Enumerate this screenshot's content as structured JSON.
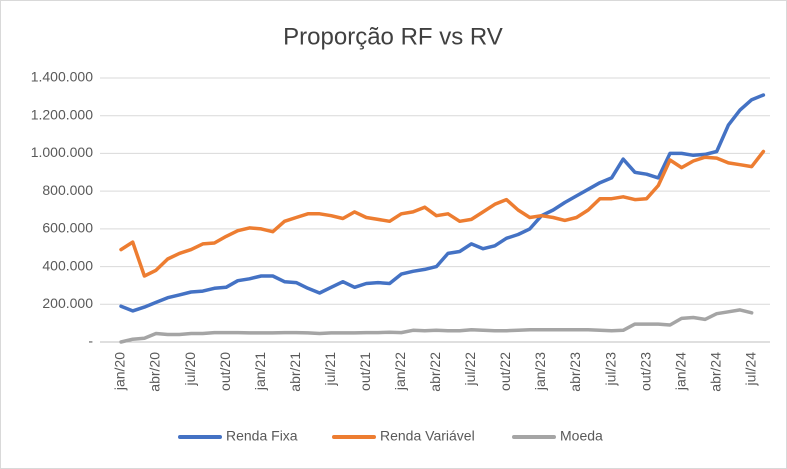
{
  "chart_data": {
    "type": "line",
    "title": "Proporção RF vs RV",
    "categories": [
      "jan/20",
      null,
      null,
      "abr/20",
      null,
      null,
      "jul/20",
      null,
      null,
      "out/20",
      null,
      null,
      "jan/21",
      null,
      null,
      "abr/21",
      null,
      null,
      "jul/21",
      null,
      null,
      "out/21",
      null,
      null,
      "jan/22",
      null,
      null,
      "abr/22",
      null,
      null,
      "jul/22",
      null,
      null,
      "out/22",
      null,
      null,
      "jan/23",
      null,
      null,
      "abr/23",
      null,
      null,
      "jul/23",
      null,
      null,
      "out/23",
      null,
      null,
      "jan/24",
      null,
      null,
      "abr/24",
      null,
      null,
      "jul/24",
      null
    ],
    "series": [
      {
        "name": "Renda Fixa",
        "color": "#4472c4",
        "values": [
          190000,
          165000,
          185000,
          210000,
          235000,
          250000,
          265000,
          270000,
          285000,
          290000,
          325000,
          335000,
          350000,
          350000,
          320000,
          315000,
          285000,
          260000,
          290000,
          320000,
          290000,
          310000,
          315000,
          310000,
          360000,
          375000,
          385000,
          400000,
          470000,
          480000,
          520000,
          495000,
          510000,
          550000,
          570000,
          600000,
          670000,
          700000,
          740000,
          775000,
          810000,
          845000,
          870000,
          970000,
          900000,
          890000,
          870000,
          1000000,
          1000000,
          990000,
          995000,
          1010000,
          1150000,
          1230000,
          1285000,
          1310000
        ]
      },
      {
        "name": "Renda Variável",
        "color": "#ed7d31",
        "values": [
          490000,
          530000,
          350000,
          380000,
          440000,
          470000,
          490000,
          520000,
          525000,
          560000,
          590000,
          605000,
          600000,
          585000,
          640000,
          660000,
          680000,
          680000,
          670000,
          655000,
          690000,
          660000,
          650000,
          640000,
          680000,
          690000,
          715000,
          670000,
          680000,
          640000,
          650000,
          690000,
          730000,
          755000,
          700000,
          660000,
          670000,
          660000,
          645000,
          660000,
          700000,
          760000,
          760000,
          770000,
          755000,
          760000,
          830000,
          965000,
          925000,
          960000,
          980000,
          975000,
          950000,
          940000,
          930000,
          1010000
        ]
      },
      {
        "name": "Moeda",
        "color": "#a5a5a5",
        "values": [
          0,
          15000,
          20000,
          45000,
          40000,
          40000,
          45000,
          45000,
          50000,
          50000,
          50000,
          48000,
          48000,
          48000,
          50000,
          50000,
          48000,
          45000,
          48000,
          48000,
          48000,
          50000,
          50000,
          52000,
          50000,
          62000,
          60000,
          62000,
          60000,
          60000,
          65000,
          62000,
          60000,
          60000,
          62000,
          65000,
          65000,
          65000,
          65000,
          65000,
          65000,
          62000,
          60000,
          62000,
          95000,
          95000,
          95000,
          90000,
          125000,
          130000,
          120000,
          150000,
          160000,
          170000,
          155000,
          null
        ]
      }
    ],
    "ylim": [
      0,
      1400000
    ],
    "yticks": [
      {
        "value": 0,
        "label": "-"
      },
      {
        "value": 200000,
        "label": "200.000"
      },
      {
        "value": 400000,
        "label": "400.000"
      },
      {
        "value": 600000,
        "label": "600.000"
      },
      {
        "value": 800000,
        "label": "800.000"
      },
      {
        "value": 1000000,
        "label": "1.000.000"
      },
      {
        "value": 1200000,
        "label": "1.200.000"
      },
      {
        "value": 1400000,
        "label": "1.400.000"
      }
    ],
    "grid": true,
    "legend": "bottom"
  }
}
